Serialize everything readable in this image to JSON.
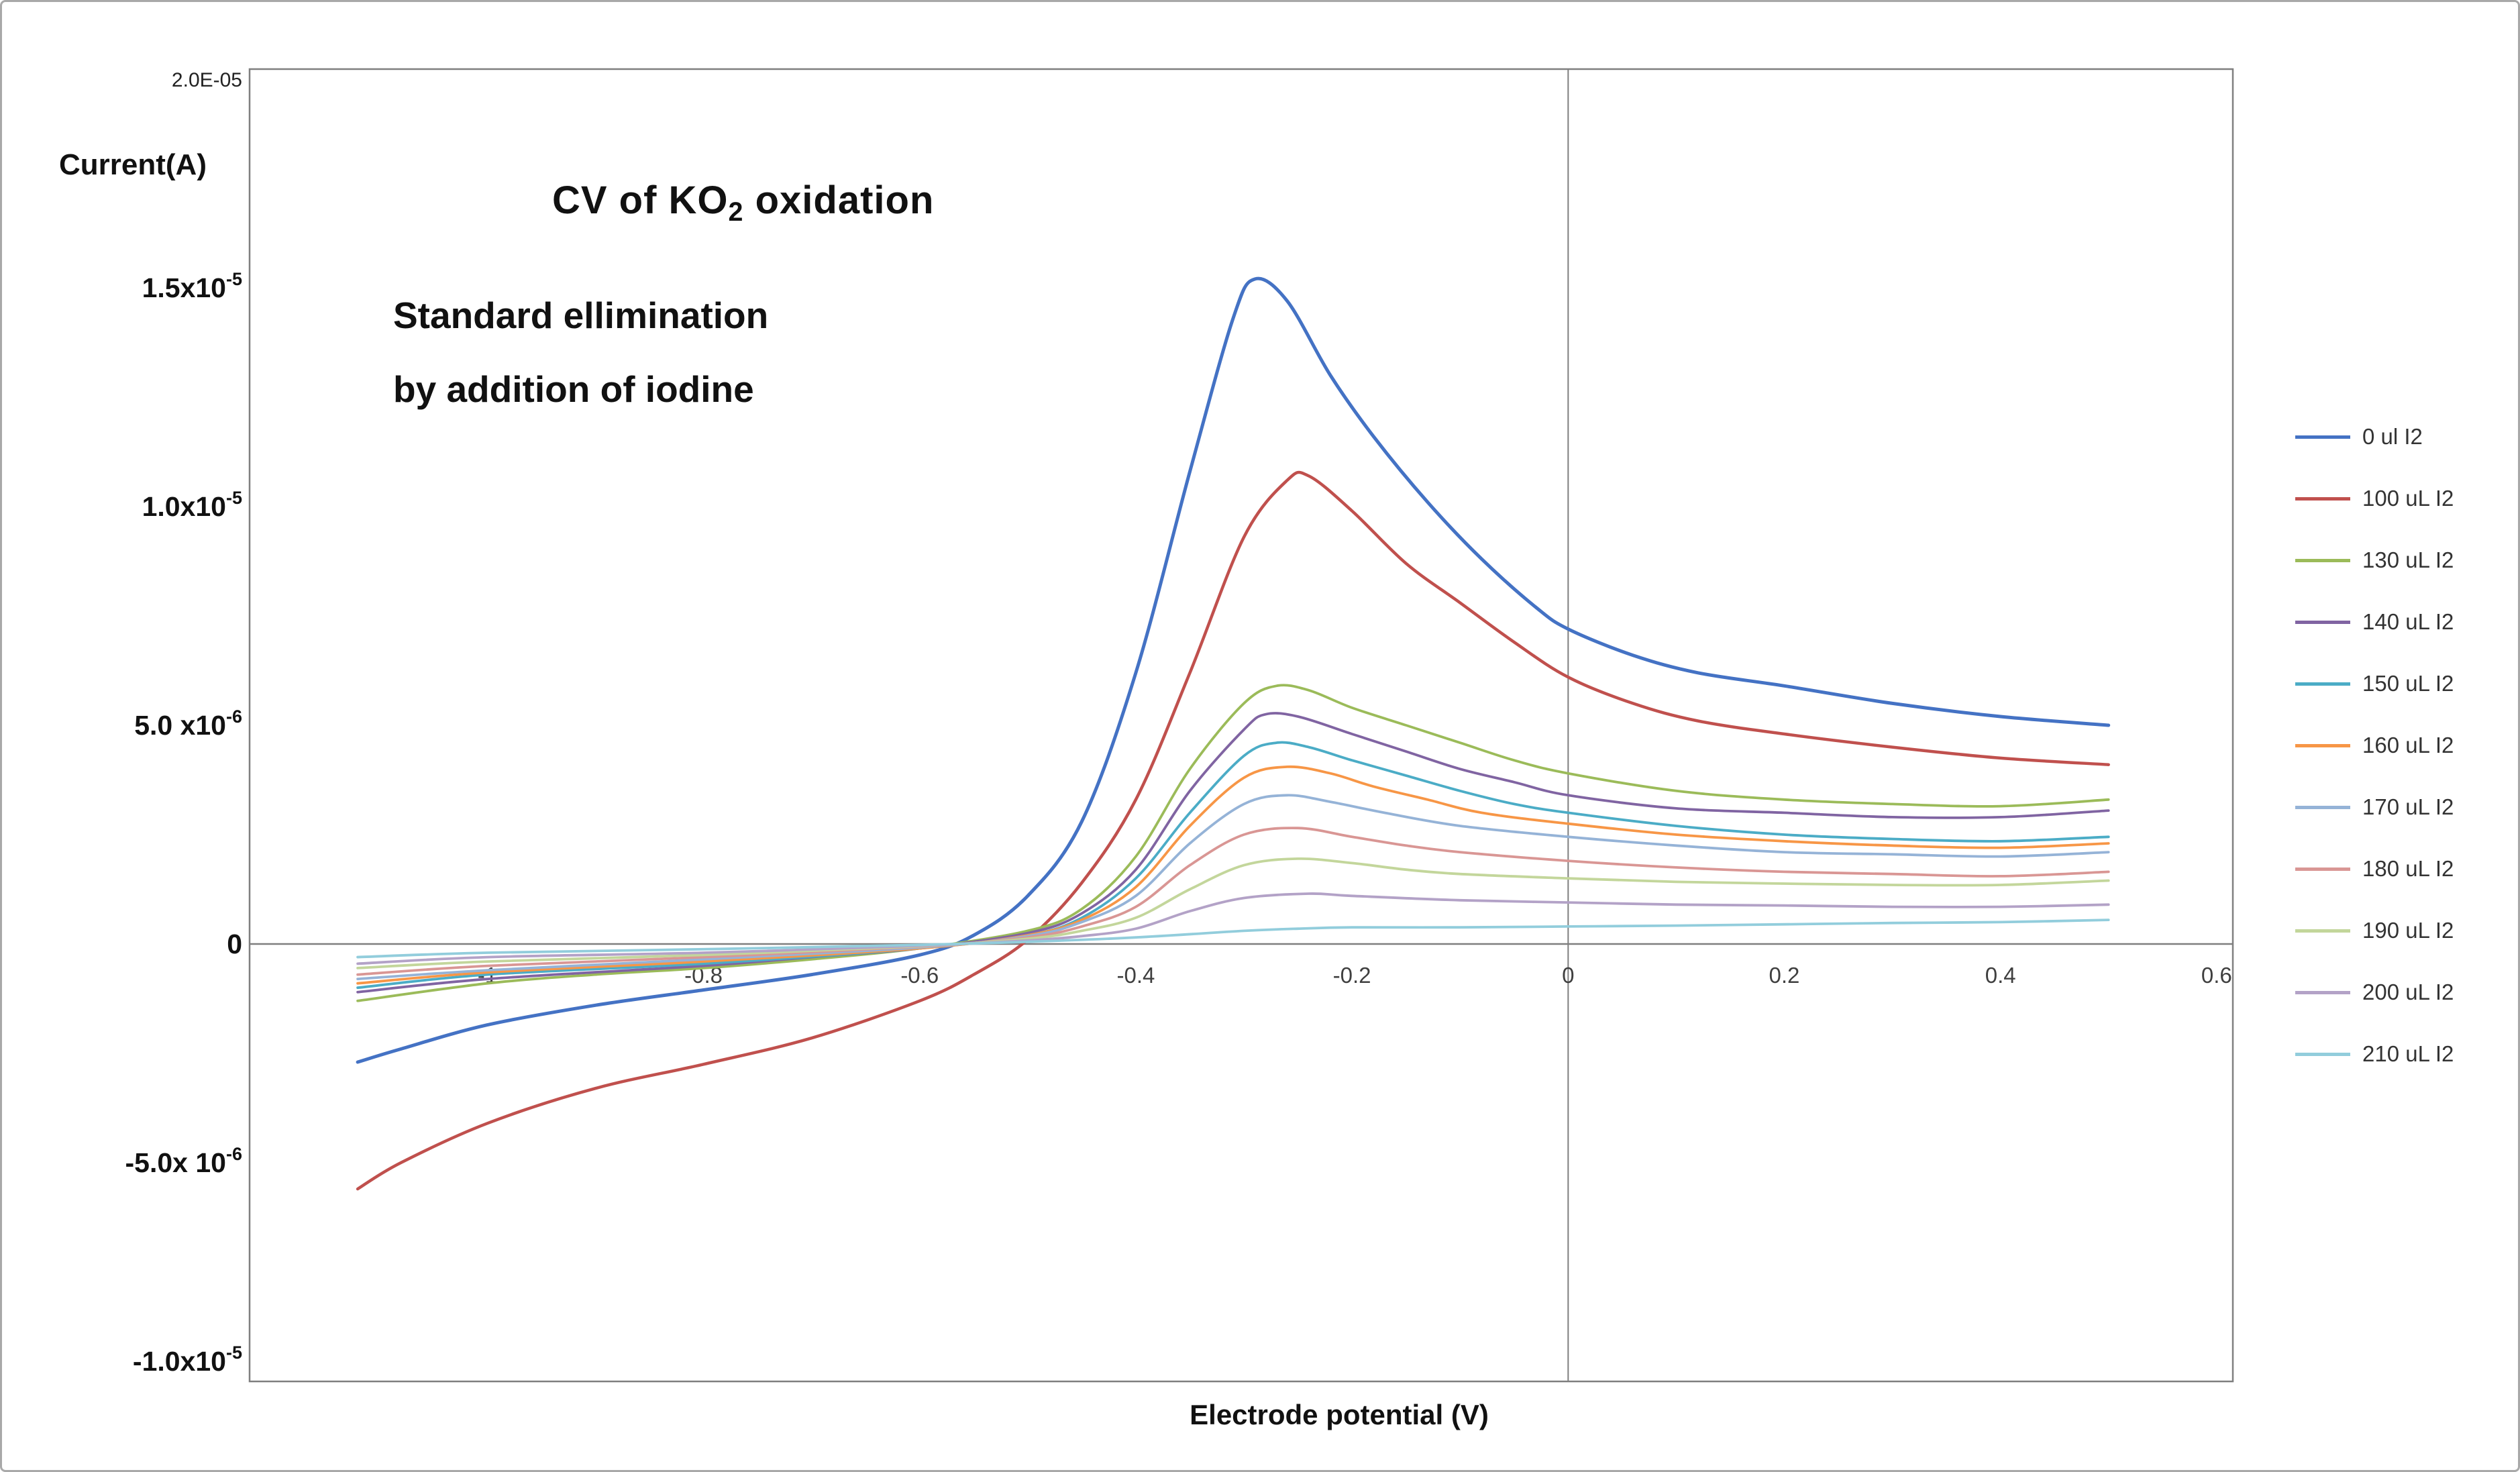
{
  "figure": {
    "title": {
      "pre": "CV of KO",
      "sub": "2",
      "post": " oxidation"
    },
    "subtitle_line1": "Standard ellimination",
    "subtitle_line2": "by addition of iodine",
    "y_axis_label": "Current(A)",
    "x_axis_label": "Electrode potential (V)"
  },
  "chart_data": {
    "type": "line",
    "title": "CV of KO2 oxidation",
    "annotation": "Standard ellimination by addition of iodine",
    "xlabel": "Electrode potential (V)",
    "ylabel": "Current(A)",
    "xlim": [
      -1.22,
      0.615
    ],
    "ylim": [
      -1e-05,
      2e-05
    ],
    "grid": false,
    "legend_position": "right",
    "x_ticks": [
      {
        "v": -1.0,
        "label": "-1"
      },
      {
        "v": -0.8,
        "label": "-0.8"
      },
      {
        "v": -0.6,
        "label": "-0.6"
      },
      {
        "v": -0.4,
        "label": "-0.4"
      },
      {
        "v": -0.2,
        "label": "-0.2"
      },
      {
        "v": 0.0,
        "label": "0"
      },
      {
        "v": 0.2,
        "label": "0.2"
      },
      {
        "v": 0.4,
        "label": "0.4"
      },
      {
        "v": 0.6,
        "label": "0.6"
      }
    ],
    "y_ticks": [
      {
        "v": 2e-05,
        "base": "2.0E-05",
        "sup": "",
        "style": "small"
      },
      {
        "v": 1.5e-05,
        "base": "1.5x10",
        "sup": "-5",
        "style": "bold"
      },
      {
        "v": 1e-05,
        "base": "1.0x10",
        "sup": "-5",
        "style": "bold"
      },
      {
        "v": 5e-06,
        "base": "5.0 x10",
        "sup": "-6",
        "style": "bold"
      },
      {
        "v": 0.0,
        "base": "0",
        "sup": "",
        "style": "bold"
      },
      {
        "v": -5e-06,
        "base": "-5.0x 10",
        "sup": "-6",
        "style": "bold"
      },
      {
        "v": -1e-05,
        "base": "-1.0x10",
        "sup": "-5",
        "style": "bold"
      }
    ],
    "points_unit": "microampere (1e-6 A)",
    "series": [
      {
        "name": "0 ul I2",
        "color": "#4472C4",
        "width": 5,
        "points": [
          [
            -1.12,
            -2.7
          ],
          [
            -1.08,
            -2.4
          ],
          [
            -1.0,
            -1.85
          ],
          [
            -0.9,
            -1.4
          ],
          [
            -0.8,
            -1.05
          ],
          [
            -0.7,
            -0.7
          ],
          [
            -0.6,
            -0.25
          ],
          [
            -0.55,
            0.2
          ],
          [
            -0.5,
            1.1
          ],
          [
            -0.45,
            2.8
          ],
          [
            -0.4,
            6.2
          ],
          [
            -0.35,
            10.8
          ],
          [
            -0.31,
            14.3
          ],
          [
            -0.29,
            15.2
          ],
          [
            -0.26,
            14.7
          ],
          [
            -0.22,
            13.0
          ],
          [
            -0.18,
            11.6
          ],
          [
            -0.13,
            10.1
          ],
          [
            -0.08,
            8.8
          ],
          [
            -0.03,
            7.7
          ],
          [
            0,
            7.2
          ],
          [
            0.06,
            6.6
          ],
          [
            0.12,
            6.2
          ],
          [
            0.2,
            5.9
          ],
          [
            0.3,
            5.5
          ],
          [
            0.4,
            5.2
          ],
          [
            0.5,
            5.0
          ]
        ]
      },
      {
        "name": "100 uL I2",
        "color": "#C0504D",
        "width": 4.5,
        "points": [
          [
            -1.12,
            -5.6
          ],
          [
            -1.08,
            -5.0
          ],
          [
            -1.0,
            -4.1
          ],
          [
            -0.9,
            -3.3
          ],
          [
            -0.8,
            -2.75
          ],
          [
            -0.7,
            -2.15
          ],
          [
            -0.6,
            -1.3
          ],
          [
            -0.55,
            -0.7
          ],
          [
            -0.5,
            0.1
          ],
          [
            -0.45,
            1.4
          ],
          [
            -0.4,
            3.3
          ],
          [
            -0.35,
            6.2
          ],
          [
            -0.3,
            9.3
          ],
          [
            -0.26,
            10.6
          ],
          [
            -0.24,
            10.7
          ],
          [
            -0.2,
            9.9
          ],
          [
            -0.15,
            8.7
          ],
          [
            -0.1,
            7.8
          ],
          [
            -0.05,
            6.9
          ],
          [
            0,
            6.1
          ],
          [
            0.06,
            5.5
          ],
          [
            0.12,
            5.1
          ],
          [
            0.2,
            4.8
          ],
          [
            0.3,
            4.5
          ],
          [
            0.4,
            4.25
          ],
          [
            0.5,
            4.1
          ]
        ]
      },
      {
        "name": "130 uL I2",
        "color": "#9BBB59",
        "width": 3.8,
        "points": [
          [
            -1.12,
            -1.3
          ],
          [
            -1.0,
            -0.9
          ],
          [
            -0.9,
            -0.7
          ],
          [
            -0.8,
            -0.55
          ],
          [
            -0.7,
            -0.35
          ],
          [
            -0.6,
            -0.1
          ],
          [
            -0.5,
            0.3
          ],
          [
            -0.45,
            0.8
          ],
          [
            -0.4,
            2.0
          ],
          [
            -0.35,
            4.0
          ],
          [
            -0.3,
            5.5
          ],
          [
            -0.27,
            5.9
          ],
          [
            -0.24,
            5.8
          ],
          [
            -0.2,
            5.4
          ],
          [
            -0.15,
            5.0
          ],
          [
            -0.1,
            4.6
          ],
          [
            -0.05,
            4.2
          ],
          [
            0,
            3.9
          ],
          [
            0.1,
            3.5
          ],
          [
            0.2,
            3.3
          ],
          [
            0.3,
            3.2
          ],
          [
            0.4,
            3.15
          ],
          [
            0.5,
            3.3
          ]
        ]
      },
      {
        "name": "140 uL I2",
        "color": "#8064A2",
        "width": 3.8,
        "points": [
          [
            -1.12,
            -1.1
          ],
          [
            -1.0,
            -0.8
          ],
          [
            -0.8,
            -0.5
          ],
          [
            -0.7,
            -0.3
          ],
          [
            -0.6,
            -0.1
          ],
          [
            -0.5,
            0.25
          ],
          [
            -0.45,
            0.7
          ],
          [
            -0.4,
            1.7
          ],
          [
            -0.35,
            3.5
          ],
          [
            -0.3,
            4.9
          ],
          [
            -0.28,
            5.25
          ],
          [
            -0.25,
            5.2
          ],
          [
            -0.2,
            4.8
          ],
          [
            -0.15,
            4.4
          ],
          [
            -0.1,
            4.0
          ],
          [
            -0.05,
            3.7
          ],
          [
            0,
            3.4
          ],
          [
            0.1,
            3.1
          ],
          [
            0.2,
            3.0
          ],
          [
            0.3,
            2.9
          ],
          [
            0.4,
            2.9
          ],
          [
            0.5,
            3.05
          ]
        ]
      },
      {
        "name": "150 uL I2",
        "color": "#4BACC6",
        "width": 3.8,
        "points": [
          [
            -1.12,
            -1.0
          ],
          [
            -1.0,
            -0.7
          ],
          [
            -0.8,
            -0.45
          ],
          [
            -0.6,
            -0.1
          ],
          [
            -0.5,
            0.2
          ],
          [
            -0.45,
            0.6
          ],
          [
            -0.4,
            1.5
          ],
          [
            -0.35,
            3.0
          ],
          [
            -0.3,
            4.3
          ],
          [
            -0.27,
            4.6
          ],
          [
            -0.24,
            4.5
          ],
          [
            -0.2,
            4.2
          ],
          [
            -0.15,
            3.85
          ],
          [
            -0.1,
            3.5
          ],
          [
            -0.05,
            3.2
          ],
          [
            0,
            3.0
          ],
          [
            0.1,
            2.7
          ],
          [
            0.2,
            2.5
          ],
          [
            0.3,
            2.4
          ],
          [
            0.4,
            2.35
          ],
          [
            0.5,
            2.45
          ]
        ]
      },
      {
        "name": "160 uL I2",
        "color": "#F79646",
        "width": 3.8,
        "points": [
          [
            -1.12,
            -0.9
          ],
          [
            -1.0,
            -0.65
          ],
          [
            -0.8,
            -0.4
          ],
          [
            -0.6,
            -0.1
          ],
          [
            -0.5,
            0.2
          ],
          [
            -0.45,
            0.55
          ],
          [
            -0.4,
            1.3
          ],
          [
            -0.35,
            2.7
          ],
          [
            -0.3,
            3.8
          ],
          [
            -0.26,
            4.05
          ],
          [
            -0.22,
            3.9
          ],
          [
            -0.18,
            3.6
          ],
          [
            -0.13,
            3.3
          ],
          [
            -0.08,
            3.0
          ],
          [
            0,
            2.75
          ],
          [
            0.1,
            2.5
          ],
          [
            0.2,
            2.35
          ],
          [
            0.3,
            2.25
          ],
          [
            0.4,
            2.2
          ],
          [
            0.5,
            2.3
          ]
        ]
      },
      {
        "name": "170 uL I2",
        "color": "#95B3D7",
        "width": 3.8,
        "points": [
          [
            -1.12,
            -0.8
          ],
          [
            -1.0,
            -0.6
          ],
          [
            -0.8,
            -0.35
          ],
          [
            -0.6,
            -0.08
          ],
          [
            -0.5,
            0.18
          ],
          [
            -0.45,
            0.5
          ],
          [
            -0.4,
            1.1
          ],
          [
            -0.35,
            2.3
          ],
          [
            -0.3,
            3.2
          ],
          [
            -0.26,
            3.4
          ],
          [
            -0.22,
            3.25
          ],
          [
            -0.17,
            3.0
          ],
          [
            -0.1,
            2.7
          ],
          [
            0,
            2.45
          ],
          [
            0.1,
            2.25
          ],
          [
            0.2,
            2.1
          ],
          [
            0.3,
            2.05
          ],
          [
            0.4,
            2.0
          ],
          [
            0.5,
            2.1
          ]
        ]
      },
      {
        "name": "180 uL I2",
        "color": "#D99694",
        "width": 3.8,
        "points": [
          [
            -1.12,
            -0.7
          ],
          [
            -1.0,
            -0.5
          ],
          [
            -0.8,
            -0.3
          ],
          [
            -0.6,
            -0.06
          ],
          [
            -0.5,
            0.15
          ],
          [
            -0.45,
            0.4
          ],
          [
            -0.4,
            0.85
          ],
          [
            -0.35,
            1.8
          ],
          [
            -0.3,
            2.5
          ],
          [
            -0.25,
            2.65
          ],
          [
            -0.2,
            2.45
          ],
          [
            -0.15,
            2.25
          ],
          [
            -0.1,
            2.1
          ],
          [
            0,
            1.9
          ],
          [
            0.1,
            1.75
          ],
          [
            0.2,
            1.65
          ],
          [
            0.3,
            1.6
          ],
          [
            0.4,
            1.55
          ],
          [
            0.5,
            1.65
          ]
        ]
      },
      {
        "name": "190 uL I2",
        "color": "#C3D69B",
        "width": 3.8,
        "points": [
          [
            -1.12,
            -0.55
          ],
          [
            -1.0,
            -0.4
          ],
          [
            -0.8,
            -0.25
          ],
          [
            -0.6,
            -0.05
          ],
          [
            -0.5,
            0.12
          ],
          [
            -0.45,
            0.3
          ],
          [
            -0.4,
            0.6
          ],
          [
            -0.35,
            1.25
          ],
          [
            -0.3,
            1.8
          ],
          [
            -0.25,
            1.95
          ],
          [
            -0.2,
            1.85
          ],
          [
            -0.15,
            1.7
          ],
          [
            -0.1,
            1.6
          ],
          [
            0,
            1.5
          ],
          [
            0.1,
            1.42
          ],
          [
            0.2,
            1.38
          ],
          [
            0.3,
            1.35
          ],
          [
            0.4,
            1.35
          ],
          [
            0.5,
            1.45
          ]
        ]
      },
      {
        "name": "200 uL I2",
        "color": "#B3A2C7",
        "width": 3.8,
        "points": [
          [
            -1.12,
            -0.45
          ],
          [
            -1.0,
            -0.3
          ],
          [
            -0.8,
            -0.2
          ],
          [
            -0.6,
            -0.04
          ],
          [
            -0.5,
            0.08
          ],
          [
            -0.45,
            0.18
          ],
          [
            -0.4,
            0.35
          ],
          [
            -0.35,
            0.75
          ],
          [
            -0.3,
            1.05
          ],
          [
            -0.24,
            1.15
          ],
          [
            -0.2,
            1.1
          ],
          [
            -0.1,
            1.0
          ],
          [
            0,
            0.95
          ],
          [
            0.1,
            0.9
          ],
          [
            0.2,
            0.88
          ],
          [
            0.3,
            0.85
          ],
          [
            0.4,
            0.85
          ],
          [
            0.5,
            0.9
          ]
        ]
      },
      {
        "name": "210 uL I2",
        "color": "#92CDDC",
        "width": 3.8,
        "points": [
          [
            -1.12,
            -0.3
          ],
          [
            -1.0,
            -0.2
          ],
          [
            -0.8,
            -0.12
          ],
          [
            -0.6,
            -0.02
          ],
          [
            -0.5,
            0.05
          ],
          [
            -0.4,
            0.15
          ],
          [
            -0.3,
            0.3
          ],
          [
            -0.25,
            0.35
          ],
          [
            -0.2,
            0.38
          ],
          [
            -0.1,
            0.38
          ],
          [
            0,
            0.4
          ],
          [
            0.1,
            0.42
          ],
          [
            0.2,
            0.45
          ],
          [
            0.3,
            0.48
          ],
          [
            0.4,
            0.5
          ],
          [
            0.5,
            0.55
          ]
        ]
      }
    ]
  }
}
